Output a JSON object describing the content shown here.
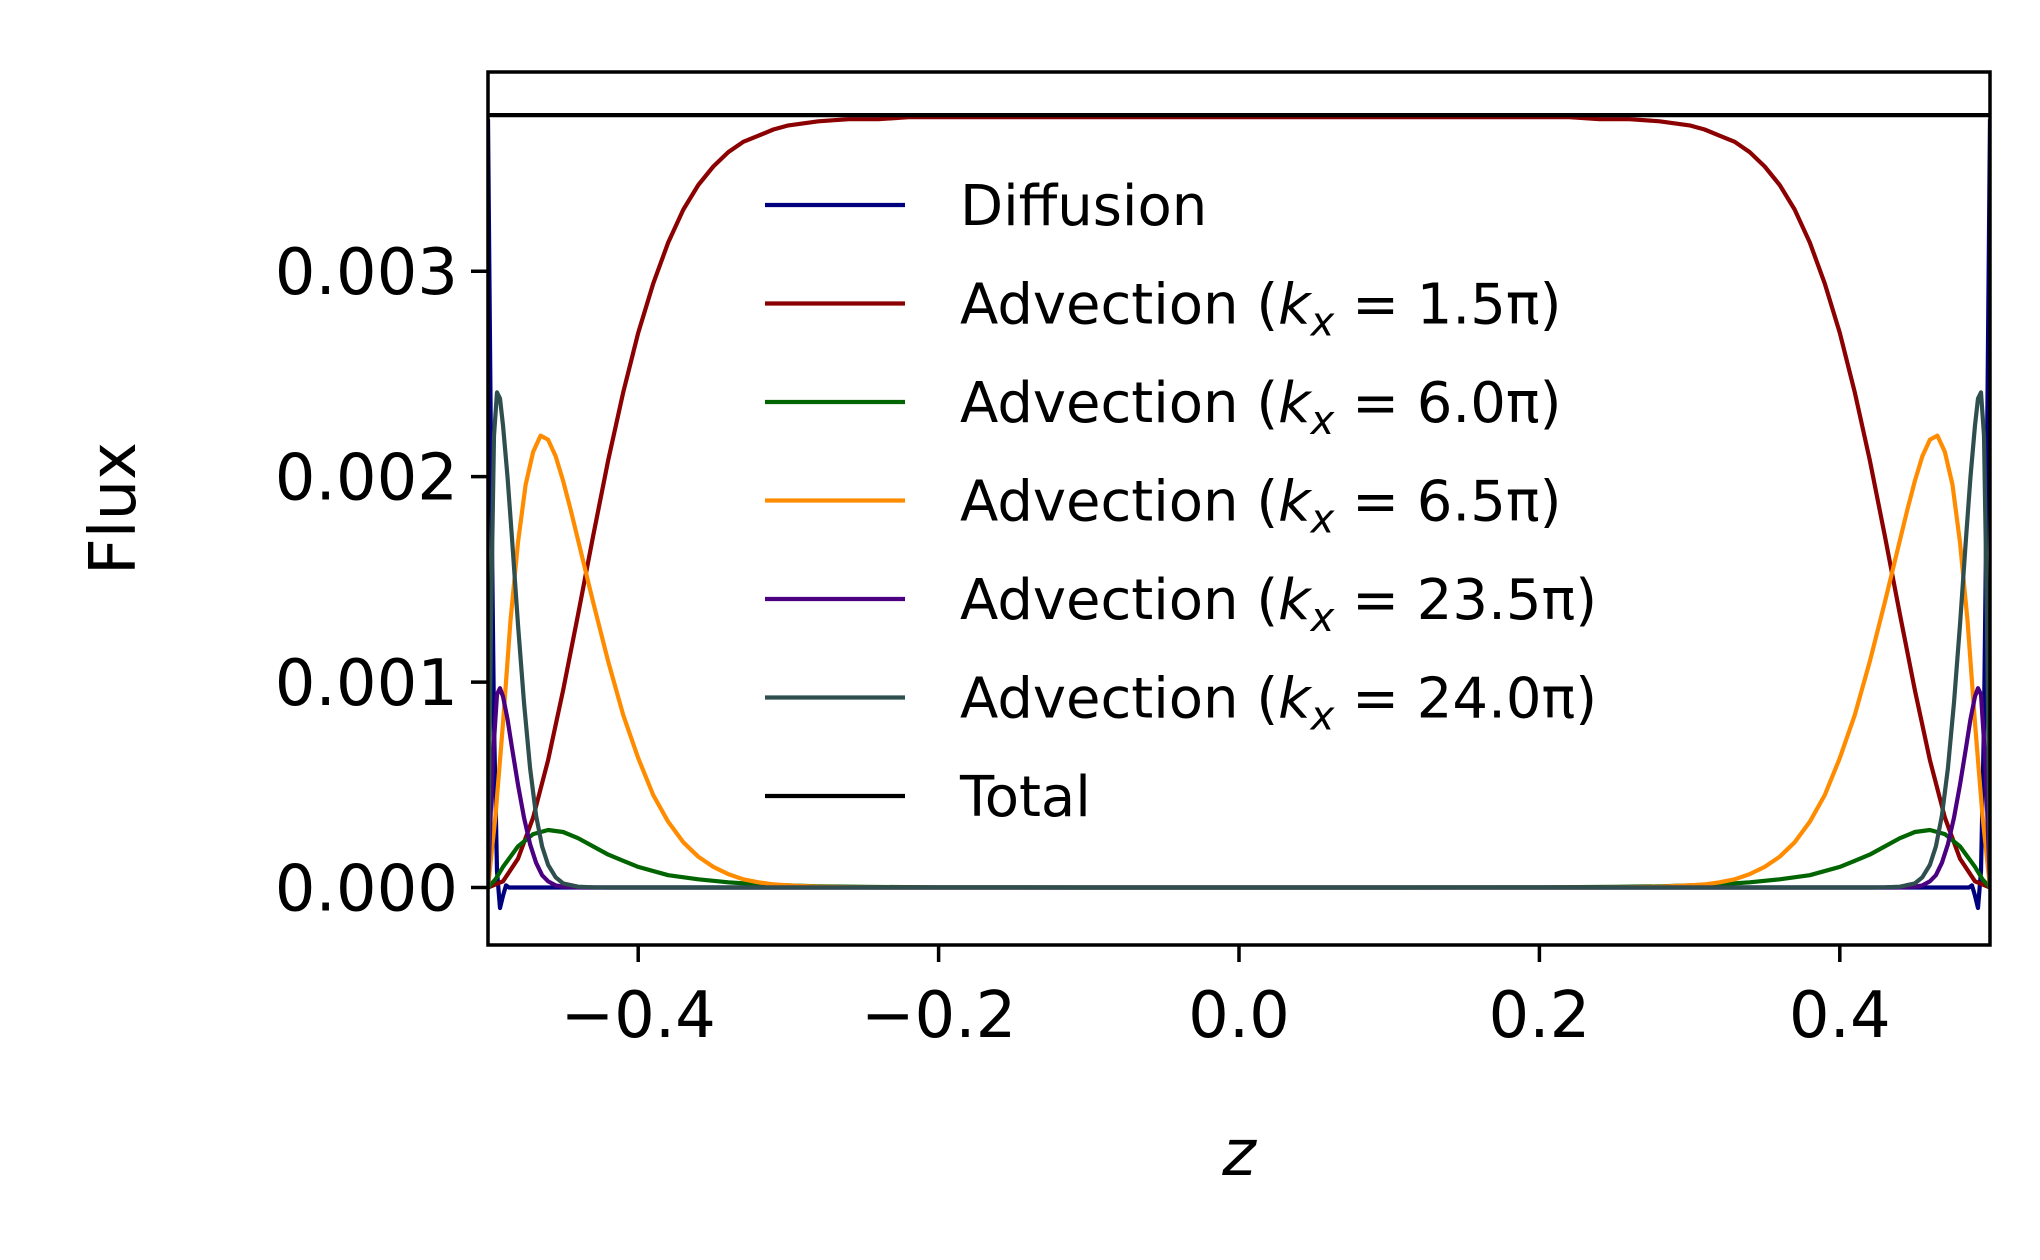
{
  "chart_data": {
    "type": "line",
    "xlabel": "z",
    "ylabel": "Flux",
    "xlim": [
      -0.5,
      0.5
    ],
    "ylim": [
      -0.00028,
      0.00397
    ],
    "xticks": [
      -0.4,
      -0.2,
      0.0,
      0.2,
      0.4
    ],
    "xtick_labels": [
      "−0.4",
      "−0.2",
      "0.0",
      "0.2",
      "0.4"
    ],
    "yticks": [
      0.0,
      0.001,
      0.002,
      0.003
    ],
    "ytick_labels": [
      "0.000",
      "0.001",
      "0.002",
      "0.003"
    ],
    "grid": false,
    "legend_position": "upper center",
    "series": [
      {
        "name": "Diffusion",
        "legend_prefix": "Diffusion",
        "legend_var": "",
        "legend_sub": "",
        "legend_value": "",
        "legend_suffix": "",
        "color": "#00007f",
        "x": [
          -0.5,
          -0.498,
          -0.496,
          -0.494,
          -0.492,
          -0.49,
          -0.488,
          -0.486,
          -0.484,
          -0.48,
          -0.47,
          -0.45,
          -0.4,
          0.0,
          0.4,
          0.45,
          0.47,
          0.48,
          0.484,
          0.486,
          0.488,
          0.49,
          0.492,
          0.494,
          0.496,
          0.498,
          0.5
        ],
        "y": [
          0.00374,
          0.0021,
          0.0008,
          8e-05,
          -0.0001,
          -4e-05,
          1e-05,
          0.0,
          0.0,
          0.0,
          0.0,
          0.0,
          0.0,
          0.0,
          0.0,
          0.0,
          0.0,
          0.0,
          0.0,
          0.0,
          1e-05,
          -4e-05,
          -0.0001,
          8e-05,
          0.0008,
          0.0021,
          0.00374
        ]
      },
      {
        "name": "Advection (k_x = 1.5π)",
        "legend_prefix": "Advection (",
        "legend_var": "k",
        "legend_sub": "x",
        "legend_value": " = 1.5π",
        "legend_suffix": ")",
        "color": "#8b0000",
        "x": [
          -0.5,
          -0.49,
          -0.48,
          -0.47,
          -0.46,
          -0.45,
          -0.44,
          -0.43,
          -0.42,
          -0.41,
          -0.4,
          -0.39,
          -0.38,
          -0.37,
          -0.36,
          -0.35,
          -0.34,
          -0.33,
          -0.32,
          -0.31,
          -0.3,
          -0.28,
          -0.26,
          -0.24,
          -0.22,
          -0.2,
          -0.1,
          0.0,
          0.1,
          0.2,
          0.22,
          0.24,
          0.26,
          0.28,
          0.3,
          0.31,
          0.32,
          0.33,
          0.34,
          0.35,
          0.36,
          0.37,
          0.38,
          0.39,
          0.4,
          0.41,
          0.42,
          0.43,
          0.44,
          0.45,
          0.46,
          0.47,
          0.48,
          0.49,
          0.5
        ],
        "y": [
          0.0,
          3e-05,
          0.00014,
          0.00034,
          0.00062,
          0.00096,
          0.00133,
          0.00171,
          0.00208,
          0.00241,
          0.0027,
          0.00294,
          0.00314,
          0.0033,
          0.00342,
          0.00351,
          0.00358,
          0.00363,
          0.00366,
          0.00369,
          0.00371,
          0.00373,
          0.00374,
          0.00374,
          0.00375,
          0.00375,
          0.00375,
          0.00375,
          0.00375,
          0.00375,
          0.00375,
          0.00374,
          0.00374,
          0.00373,
          0.00371,
          0.00369,
          0.00366,
          0.00363,
          0.00358,
          0.00351,
          0.00342,
          0.0033,
          0.00314,
          0.00294,
          0.0027,
          0.00241,
          0.00208,
          0.00171,
          0.00133,
          0.00096,
          0.00062,
          0.00034,
          0.00014,
          3e-05,
          0.0
        ]
      },
      {
        "name": "Advection (k_x = 6.0π)",
        "legend_prefix": "Advection (",
        "legend_var": "k",
        "legend_sub": "x",
        "legend_value": " = 6.0π",
        "legend_suffix": ")",
        "color": "#006400",
        "x": [
          -0.5,
          -0.495,
          -0.49,
          -0.48,
          -0.47,
          -0.46,
          -0.45,
          -0.44,
          -0.43,
          -0.42,
          -0.41,
          -0.4,
          -0.38,
          -0.36,
          -0.34,
          -0.32,
          -0.3,
          -0.28,
          -0.25,
          -0.2,
          -0.1,
          0.0,
          0.1,
          0.2,
          0.25,
          0.28,
          0.3,
          0.32,
          0.34,
          0.36,
          0.38,
          0.4,
          0.41,
          0.42,
          0.43,
          0.44,
          0.45,
          0.46,
          0.47,
          0.48,
          0.49,
          0.495,
          0.5
        ],
        "y": [
          0.0,
          4e-05,
          0.0001,
          0.0002,
          0.00026,
          0.00028,
          0.00027,
          0.00024,
          0.0002,
          0.00016,
          0.00013,
          0.0001,
          6e-05,
          4e-05,
          2.5e-05,
          1.5e-05,
          1e-05,
          6e-06,
          3e-06,
          1e-06,
          0.0,
          0.0,
          0.0,
          1e-06,
          3e-06,
          6e-06,
          1e-05,
          1.5e-05,
          2.5e-05,
          4e-05,
          6e-05,
          0.0001,
          0.00013,
          0.00016,
          0.0002,
          0.00024,
          0.00027,
          0.00028,
          0.00026,
          0.0002,
          0.0001,
          4e-05,
          0.0
        ]
      },
      {
        "name": "Advection (k_x = 6.5π)",
        "legend_prefix": "Advection (",
        "legend_var": "k",
        "legend_sub": "x",
        "legend_value": " = 6.5π",
        "legend_suffix": ")",
        "color": "#ff8c00",
        "x": [
          -0.5,
          -0.495,
          -0.49,
          -0.485,
          -0.48,
          -0.475,
          -0.47,
          -0.465,
          -0.46,
          -0.455,
          -0.45,
          -0.445,
          -0.44,
          -0.43,
          -0.42,
          -0.41,
          -0.4,
          -0.39,
          -0.38,
          -0.37,
          -0.36,
          -0.35,
          -0.34,
          -0.33,
          -0.32,
          -0.31,
          -0.3,
          -0.28,
          -0.26,
          -0.24,
          -0.22,
          -0.2,
          -0.1,
          0.0,
          0.1,
          0.2,
          0.22,
          0.24,
          0.26,
          0.28,
          0.3,
          0.31,
          0.32,
          0.33,
          0.34,
          0.35,
          0.36,
          0.37,
          0.38,
          0.39,
          0.4,
          0.41,
          0.42,
          0.43,
          0.44,
          0.445,
          0.45,
          0.455,
          0.46,
          0.465,
          0.47,
          0.475,
          0.48,
          0.485,
          0.49,
          0.495,
          0.5
        ],
        "y": [
          0.0,
          0.00035,
          0.0008,
          0.0013,
          0.00168,
          0.00196,
          0.00212,
          0.0022,
          0.00218,
          0.0021,
          0.00198,
          0.00184,
          0.00169,
          0.00139,
          0.0011,
          0.00084,
          0.00063,
          0.00045,
          0.00032,
          0.00022,
          0.00015,
          0.0001,
          6.5e-05,
          4e-05,
          2.5e-05,
          1.5e-05,
          1e-05,
          4e-06,
          1.5e-06,
          0.0,
          0.0,
          0.0,
          0.0,
          0.0,
          0.0,
          0.0,
          0.0,
          0.0,
          1.5e-06,
          4e-06,
          1e-05,
          1.5e-05,
          2.5e-05,
          4e-05,
          6.5e-05,
          0.0001,
          0.00015,
          0.00022,
          0.00032,
          0.00045,
          0.00063,
          0.00084,
          0.0011,
          0.00139,
          0.00169,
          0.00184,
          0.00198,
          0.0021,
          0.00218,
          0.0022,
          0.00212,
          0.00196,
          0.00168,
          0.0013,
          0.0008,
          0.00035,
          0.0
        ]
      },
      {
        "name": "Advection (k_x = 23.5π)",
        "legend_prefix": "Advection (",
        "legend_var": "k",
        "legend_sub": "x",
        "legend_value": " = 23.5π",
        "legend_suffix": ")",
        "color": "#4b0082",
        "x": [
          -0.5,
          -0.497,
          -0.494,
          -0.492,
          -0.49,
          -0.487,
          -0.484,
          -0.48,
          -0.476,
          -0.472,
          -0.468,
          -0.464,
          -0.46,
          -0.455,
          -0.45,
          -0.44,
          -0.43,
          -0.4,
          0.0,
          0.4,
          0.43,
          0.44,
          0.45,
          0.455,
          0.46,
          0.464,
          0.468,
          0.472,
          0.476,
          0.48,
          0.484,
          0.487,
          0.49,
          0.492,
          0.494,
          0.497,
          0.5
        ],
        "y": [
          0.0,
          0.0006,
          0.00094,
          0.00097,
          0.00093,
          0.00082,
          0.00068,
          0.0005,
          0.00034,
          0.00021,
          0.00012,
          6e-05,
          3e-05,
          1e-05,
          4e-06,
          5e-07,
          0.0,
          0.0,
          0.0,
          0.0,
          0.0,
          5e-07,
          4e-06,
          1e-05,
          3e-05,
          6e-05,
          0.00012,
          0.00021,
          0.00034,
          0.0005,
          0.00068,
          0.00082,
          0.00093,
          0.00097,
          0.00094,
          0.0006,
          0.0
        ]
      },
      {
        "name": "Advection (k_x = 24.0π)",
        "legend_prefix": "Advection (",
        "legend_var": "k",
        "legend_sub": "x",
        "legend_value": " = 24.0π",
        "legend_suffix": ")",
        "color": "#2f4f4f",
        "x": [
          -0.5,
          -0.498,
          -0.496,
          -0.494,
          -0.492,
          -0.49,
          -0.487,
          -0.484,
          -0.48,
          -0.476,
          -0.472,
          -0.468,
          -0.464,
          -0.46,
          -0.455,
          -0.45,
          -0.44,
          -0.43,
          -0.42,
          -0.4,
          0.0,
          0.4,
          0.42,
          0.43,
          0.44,
          0.45,
          0.455,
          0.46,
          0.464,
          0.468,
          0.472,
          0.476,
          0.48,
          0.484,
          0.487,
          0.49,
          0.492,
          0.494,
          0.496,
          0.498,
          0.5
        ],
        "y": [
          0.0,
          0.0013,
          0.0022,
          0.00241,
          0.00238,
          0.00225,
          0.002,
          0.0017,
          0.00128,
          0.0009,
          0.00058,
          0.00035,
          0.0002,
          0.00011,
          5e-05,
          2e-05,
          4e-06,
          1e-06,
          0.0,
          0.0,
          0.0,
          0.0,
          0.0,
          1e-06,
          4e-06,
          2e-05,
          5e-05,
          0.00011,
          0.0002,
          0.00035,
          0.00058,
          0.0009,
          0.00128,
          0.0017,
          0.002,
          0.00225,
          0.00238,
          0.00241,
          0.0022,
          0.0013,
          0.0
        ]
      },
      {
        "name": "Total",
        "legend_prefix": "Total",
        "legend_var": "",
        "legend_sub": "",
        "legend_value": "",
        "legend_suffix": "",
        "color": "#000000",
        "x": [
          -0.5,
          0.5
        ],
        "y": [
          0.00376,
          0.00376
        ]
      }
    ]
  }
}
